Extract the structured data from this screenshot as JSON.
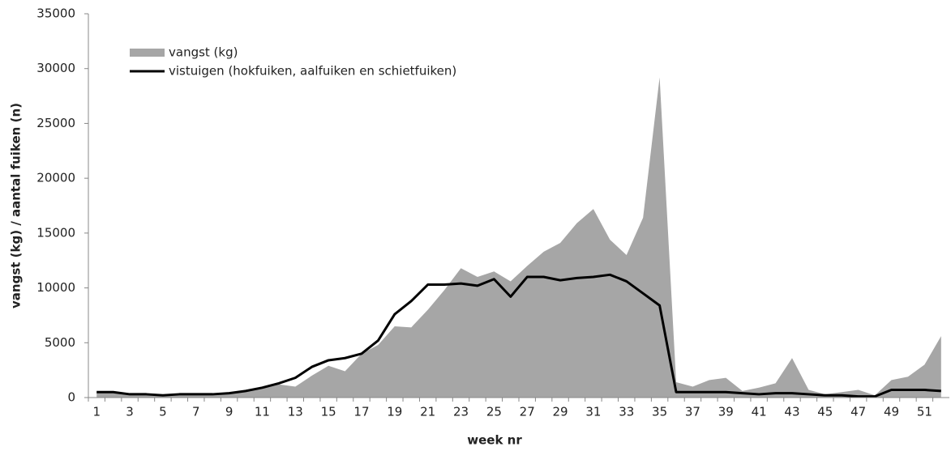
{
  "chart_data": {
    "type": "area-line",
    "xlabel": "week nr",
    "ylabel": "vangst (kg) / aantal fuiken (n)",
    "categories": [
      1,
      null,
      3,
      null,
      5,
      null,
      7,
      null,
      9,
      null,
      11,
      null,
      13,
      null,
      15,
      null,
      17,
      null,
      19,
      null,
      21,
      null,
      23,
      null,
      25,
      null,
      27,
      null,
      29,
      null,
      31,
      null,
      33,
      null,
      35,
      null,
      37,
      null,
      39,
      null,
      41,
      null,
      43,
      null,
      45,
      null,
      47,
      null,
      49,
      null,
      51,
      null
    ],
    "series": [
      {
        "name": "vangst (kg)",
        "kind": "area",
        "color": "#a6a6a6",
        "values": [
          500,
          400,
          300,
          300,
          200,
          300,
          300,
          300,
          400,
          500,
          800,
          1200,
          1000,
          2000,
          2900,
          2400,
          4000,
          4800,
          6500,
          6400,
          8000,
          9800,
          11800,
          11000,
          11500,
          10600,
          12000,
          13300,
          14100,
          15900,
          17200,
          14400,
          13000,
          16400,
          29200,
          1400,
          1000,
          1600,
          1800,
          600,
          900,
          1300,
          3600,
          700,
          300,
          500,
          700,
          200,
          1600,
          1900,
          3000,
          5600
        ]
      },
      {
        "name": "vistuigen (hokfuiken, aalfuiken en schietfuiken)",
        "kind": "line",
        "color": "#000000",
        "values": [
          500,
          500,
          300,
          300,
          200,
          300,
          300,
          300,
          400,
          600,
          900,
          1300,
          1800,
          2800,
          3400,
          3600,
          4000,
          5200,
          7600,
          8800,
          10300,
          10300,
          10400,
          10200,
          10800,
          9200,
          11000,
          11000,
          10700,
          10900,
          11000,
          11200,
          10600,
          9500,
          8400,
          500,
          500,
          500,
          500,
          400,
          300,
          400,
          400,
          300,
          200,
          200,
          100,
          100,
          700,
          700,
          700,
          600
        ]
      }
    ],
    "ylim": [
      0,
      35000
    ],
    "yticks": [
      0,
      5000,
      10000,
      15000,
      20000,
      25000,
      30000,
      35000
    ],
    "legend": "top-left"
  }
}
